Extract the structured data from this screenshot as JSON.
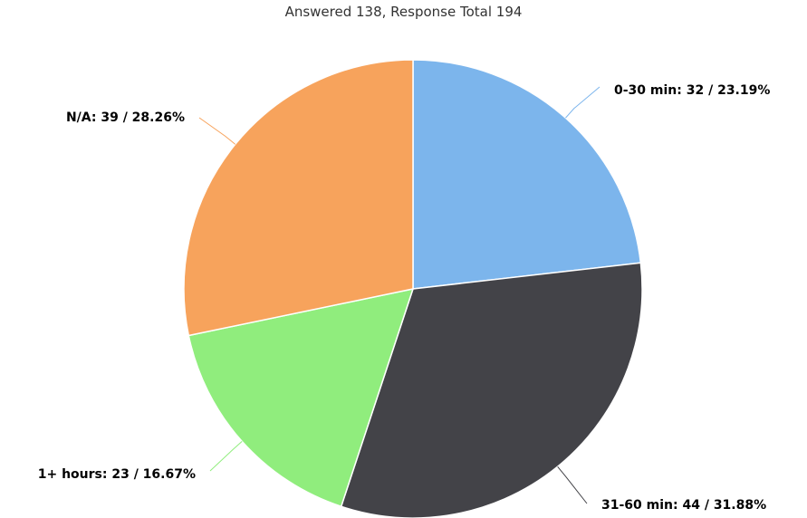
{
  "chart_data": {
    "type": "pie",
    "title": "Answered 138, Response Total 194",
    "slices": [
      {
        "label": "0-30 min",
        "value": 32,
        "percent": "23.19%",
        "color": "#7cb5ec"
      },
      {
        "label": "31-60 min",
        "value": 44,
        "percent": "31.88%",
        "color": "#434348"
      },
      {
        "label": "1+ hours",
        "value": 23,
        "percent": "16.67%",
        "color": "#90ed7d"
      },
      {
        "label": "N/A",
        "value": 39,
        "percent": "28.26%",
        "color": "#f7a35c"
      }
    ]
  }
}
